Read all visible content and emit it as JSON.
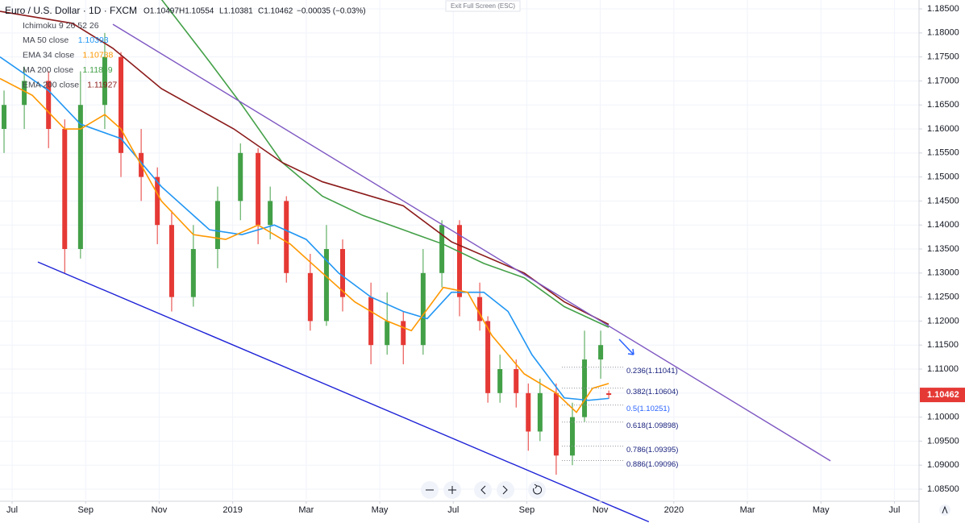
{
  "chart_data": {
    "type": "candlestick",
    "header": {
      "symbol": "Euro / U.S. Dollar · 1D · FXCM",
      "open": "O1.10497",
      "high": "H1.10554",
      "low": "L1.10381",
      "close": "C1.10462",
      "change": "−0.00035 (−0.03%)"
    },
    "indicator_label": "Ichimoku 9 26 52 26",
    "exit_button": "Exit Full Screen (ESC)",
    "last_price_label": {
      "value": 1.10462,
      "label": "1.10462"
    },
    "candles": {
      "up_color": "#43a047",
      "down_color": "#e53935",
      "x": [
        -0.22,
        0.33,
        0.99,
        1.43,
        1.86,
        2.52,
        2.96,
        3.51,
        3.95,
        4.34,
        4.93,
        5.59,
        6.21,
        6.69,
        7.02,
        7.46,
        8.11,
        8.55,
        8.99,
        9.76,
        10.2,
        10.64,
        11.18,
        11.69,
        12.17,
        12.72,
        12.94,
        13.27,
        13.71,
        14.04,
        14.36,
        14.8,
        15.24,
        15.57,
        16.01,
        16.23
      ],
      "open": [
        1.16,
        1.165,
        1.17,
        1.16,
        1.135,
        1.165,
        1.175,
        1.155,
        1.15,
        1.14,
        1.125,
        1.135,
        1.145,
        1.155,
        1.14,
        1.145,
        1.13,
        1.12,
        1.135,
        1.125,
        1.115,
        1.12,
        1.115,
        1.13,
        1.14,
        1.125,
        1.12,
        1.105,
        1.11,
        1.105,
        1.097,
        1.105,
        1.092,
        1.1,
        1.112,
        1.10497
      ],
      "high": [
        1.168,
        1.173,
        1.172,
        1.162,
        1.172,
        1.18,
        1.176,
        1.16,
        1.152,
        1.143,
        1.14,
        1.148,
        1.157,
        1.156,
        1.148,
        1.146,
        1.134,
        1.14,
        1.137,
        1.128,
        1.126,
        1.122,
        1.135,
        1.141,
        1.141,
        1.128,
        1.121,
        1.113,
        1.112,
        1.107,
        1.108,
        1.107,
        1.103,
        1.118,
        1.118,
        1.10554
      ],
      "low": [
        1.155,
        1.16,
        1.156,
        1.13,
        1.133,
        1.16,
        1.15,
        1.145,
        1.136,
        1.122,
        1.123,
        1.131,
        1.141,
        1.136,
        1.137,
        1.128,
        1.118,
        1.119,
        1.122,
        1.111,
        1.113,
        1.111,
        1.113,
        1.127,
        1.121,
        1.118,
        1.103,
        1.103,
        1.102,
        1.093,
        1.095,
        1.088,
        1.09,
        1.099,
        1.108,
        1.10381
      ],
      "close": [
        1.165,
        1.17,
        1.16,
        1.135,
        1.165,
        1.175,
        1.155,
        1.15,
        1.14,
        1.125,
        1.135,
        1.145,
        1.155,
        1.14,
        1.145,
        1.13,
        1.12,
        1.135,
        1.125,
        1.115,
        1.12,
        1.115,
        1.13,
        1.14,
        1.125,
        1.12,
        1.105,
        1.11,
        1.105,
        1.097,
        1.105,
        1.092,
        1.1,
        1.112,
        1.115,
        1.10462
      ]
    },
    "series": [
      {
        "name": "MA 50 close",
        "value_label": "1.10393",
        "color": "#2196f3",
        "x": [
          -0.33,
          0.99,
          1.86,
          2.96,
          4.06,
          5.37,
          6.25,
          7.13,
          8.0,
          8.88,
          9.76,
          10.64,
          11.29,
          11.95,
          12.83,
          13.49,
          14.14,
          15.02,
          15.68,
          16.23
        ],
        "values": [
          1.175,
          1.168,
          1.161,
          1.158,
          1.148,
          1.139,
          1.138,
          1.14,
          1.137,
          1.13,
          1.125,
          1.122,
          1.1205,
          1.126,
          1.126,
          1.122,
          1.113,
          1.104,
          1.1035,
          1.1039
        ]
      },
      {
        "name": "EMA 34 close",
        "value_label": "1.10738",
        "color": "#ff9800",
        "x": [
          -0.33,
          0.55,
          1.43,
          1.86,
          2.52,
          2.96,
          4.06,
          4.93,
          5.81,
          6.69,
          7.57,
          8.44,
          9.32,
          10.2,
          10.86,
          11.73,
          12.39,
          13.05,
          13.93,
          14.8,
          15.35,
          15.79,
          16.23
        ],
        "values": [
          1.1705,
          1.167,
          1.16,
          1.16,
          1.163,
          1.16,
          1.145,
          1.138,
          1.137,
          1.14,
          1.136,
          1.13,
          1.124,
          1.12,
          1.118,
          1.127,
          1.126,
          1.117,
          1.109,
          1.105,
          1.101,
          1.106,
          1.107
        ]
      },
      {
        "name": "MA 200 close",
        "value_label": "1.11869",
        "color": "#43a047",
        "x": [
          4.06,
          5.37,
          6.25,
          7.35,
          8.44,
          9.54,
          10.64,
          11.73,
          12.83,
          13.93,
          15.02,
          16.23
        ],
        "values": [
          1.187,
          1.174,
          1.165,
          1.153,
          1.146,
          1.142,
          1.139,
          1.136,
          1.132,
          1.129,
          1.123,
          1.1187
        ]
      },
      {
        "name": "EMA 200 close",
        "value_label": "1.11927",
        "color": "#8b1a1a",
        "x": [
          -0.33,
          1.64,
          2.74,
          4.06,
          6.03,
          7.35,
          8.44,
          10.64,
          11.95,
          13.93,
          15.02,
          16.23
        ],
        "values": [
          1.1845,
          1.182,
          1.1768,
          1.1684,
          1.16,
          1.153,
          1.149,
          1.144,
          1.1365,
          1.13,
          1.124,
          1.1193
        ]
      }
    ],
    "trend_lines": [
      {
        "color": "#7e57c2",
        "x": [
          2.74,
          22.26
        ],
        "values": [
          1.1818,
          1.0909
        ]
      },
      {
        "color": "#1e22d6",
        "x": [
          0.7,
          17.32
        ],
        "values": [
          1.1323,
          1.0782
        ]
      }
    ],
    "fib_levels": [
      {
        "label": "0.236(1.11041)",
        "value": 1.11041
      },
      {
        "label": "0.382(1.10604)",
        "value": 1.10604
      },
      {
        "label": "0.5(1.10251)",
        "value": 1.10251
      },
      {
        "label": "0.618(1.09898)",
        "value": 1.09898
      },
      {
        "label": "0.786(1.09395)",
        "value": 1.09395
      },
      {
        "label": "0.886(1.09096)",
        "value": 1.09096
      }
    ],
    "xlim": [
      -0.33,
      24.67
    ],
    "xticks": [
      {
        "value": 0,
        "label": "Jul"
      },
      {
        "value": 2,
        "label": "Sep"
      },
      {
        "value": 4,
        "label": "Nov"
      },
      {
        "value": 6,
        "label": "2019"
      },
      {
        "value": 8,
        "label": "Mar"
      },
      {
        "value": 10,
        "label": "May"
      },
      {
        "value": 12,
        "label": "Jul"
      },
      {
        "value": 14,
        "label": "Sep"
      },
      {
        "value": 16,
        "label": "Nov"
      },
      {
        "value": 18,
        "label": "2020"
      },
      {
        "value": 20,
        "label": "Mar"
      },
      {
        "value": 22,
        "label": "May"
      },
      {
        "value": 24,
        "label": "Jul"
      }
    ],
    "ylim": [
      1.08282,
      1.18685
    ],
    "yticks": [
      {
        "value": 1.185,
        "label": "1.18500"
      },
      {
        "value": 1.18,
        "label": "1.18000"
      },
      {
        "value": 1.175,
        "label": "1.17500"
      },
      {
        "value": 1.17,
        "label": "1.17000"
      },
      {
        "value": 1.165,
        "label": "1.16500"
      },
      {
        "value": 1.16,
        "label": "1.16000"
      },
      {
        "value": 1.155,
        "label": "1.15500"
      },
      {
        "value": 1.15,
        "label": "1.15000"
      },
      {
        "value": 1.145,
        "label": "1.14500"
      },
      {
        "value": 1.14,
        "label": "1.14000"
      },
      {
        "value": 1.135,
        "label": "1.13500"
      },
      {
        "value": 1.13,
        "label": "1.13000"
      },
      {
        "value": 1.125,
        "label": "1.12500"
      },
      {
        "value": 1.12,
        "label": "1.12000"
      },
      {
        "value": 1.115,
        "label": "1.11500"
      },
      {
        "value": 1.11,
        "label": "1.11000"
      },
      {
        "value": 1.105,
        "label": "1.10500"
      },
      {
        "value": 1.1,
        "label": "1.10000"
      },
      {
        "value": 1.095,
        "label": "1.09500"
      },
      {
        "value": 1.09,
        "label": "1.09000"
      },
      {
        "value": 1.085,
        "label": "1.08500"
      }
    ],
    "grid": true,
    "grid_color": "#f0f3fa"
  }
}
